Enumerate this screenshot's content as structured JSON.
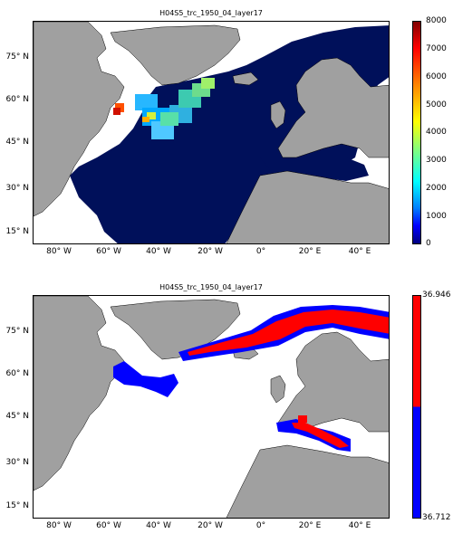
{
  "panels": [
    {
      "title": "H04S5_trc_1950_04_layer17",
      "x_ticks": [
        "80° W",
        "60° W",
        "40° W",
        "20° W",
        "0°",
        "20° E",
        "40° E"
      ],
      "y_ticks": [
        "75° N",
        "60° N",
        "45° N",
        "30° N",
        "15° N"
      ],
      "colorbar": {
        "ticks": [
          "8000",
          "7000",
          "6000",
          "5000",
          "4000",
          "3000",
          "2000",
          "1000",
          "0"
        ],
        "range": [
          0,
          8000
        ],
        "colormap": "jet"
      }
    },
    {
      "title": "H04S5_trc_1950_04_layer17",
      "x_ticks": [
        "80° W",
        "60° W",
        "40° W",
        "20° W",
        "0°",
        "20° E",
        "40° E"
      ],
      "y_ticks": [
        "75° N",
        "60° N",
        "45° N",
        "30° N",
        "15° N"
      ],
      "colorbar": {
        "ticks": [
          "36.946",
          "36.712"
        ],
        "colors": [
          "#ff0000",
          "#0000ff"
        ]
      }
    }
  ],
  "colors": {
    "land": "#a0a0a0",
    "ocean": "#00105a",
    "nodata": "#ffffff"
  }
}
